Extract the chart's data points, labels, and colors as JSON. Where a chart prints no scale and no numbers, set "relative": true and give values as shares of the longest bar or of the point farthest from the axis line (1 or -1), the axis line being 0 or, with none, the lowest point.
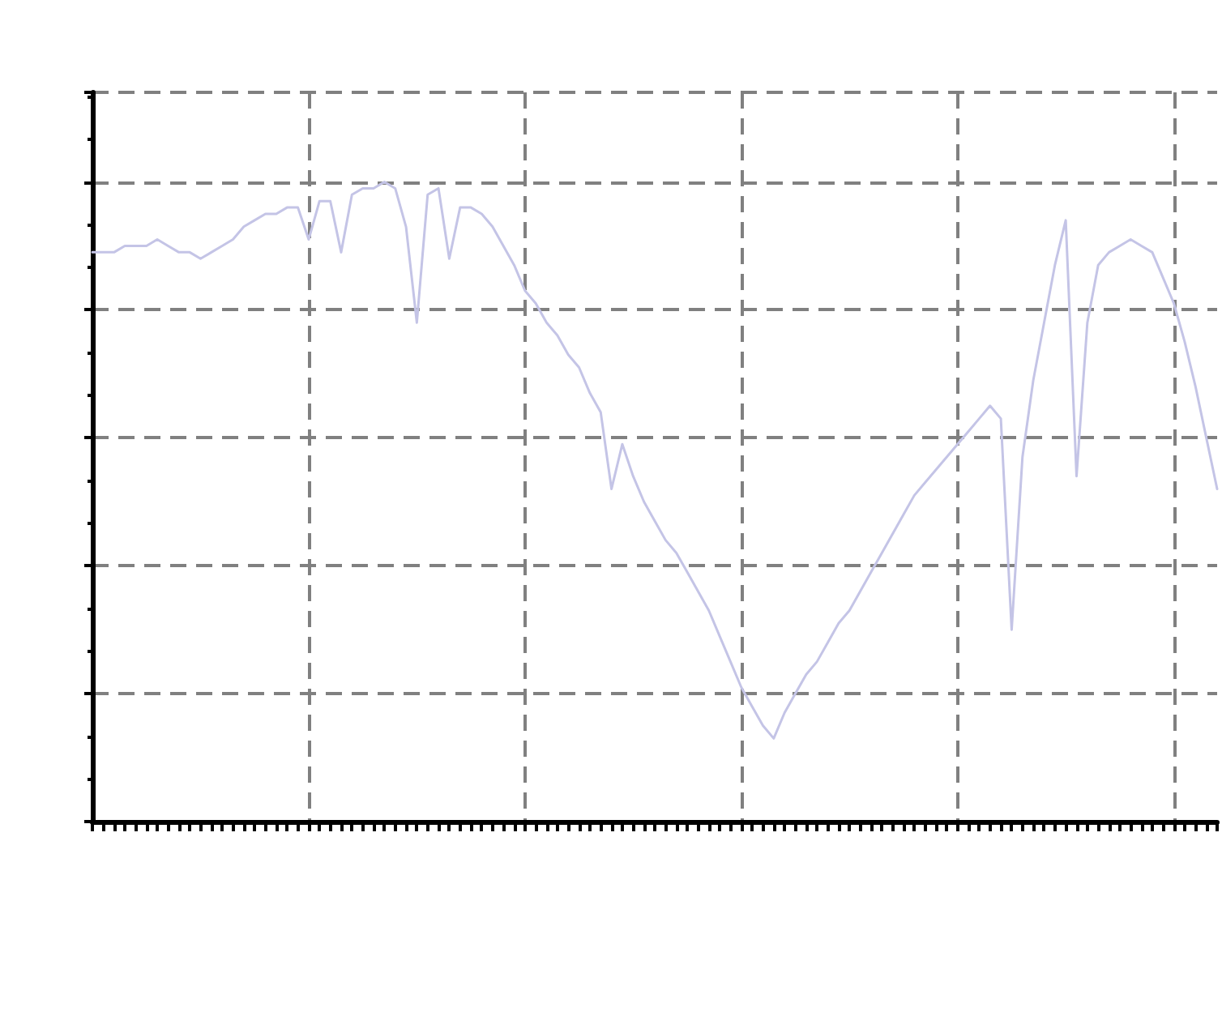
{
  "chart_data": {
    "type": "line",
    "relative": true,
    "grid": true,
    "line_style": "solid",
    "marker": "none",
    "categories": [
      null,
      null,
      null,
      null,
      null,
      null,
      null,
      null,
      null,
      null,
      null,
      null,
      null,
      null,
      null,
      null,
      null,
      null,
      null,
      null,
      null,
      null,
      null,
      null,
      null,
      null,
      null,
      null,
      null,
      null,
      null,
      null,
      null,
      null,
      null,
      null,
      null,
      null,
      null,
      null,
      null,
      null,
      null,
      null,
      null,
      null,
      null,
      null,
      null,
      null,
      null,
      null,
      null,
      null,
      null,
      null,
      null,
      null,
      null,
      null,
      null,
      null,
      null,
      null,
      null,
      null,
      null,
      null,
      null,
      null,
      null,
      null,
      null,
      null,
      null,
      null,
      null,
      null,
      null,
      null,
      null,
      null,
      null,
      null,
      null,
      null,
      null,
      null,
      null,
      null,
      null,
      null,
      null,
      null,
      null,
      null,
      null,
      null,
      null,
      null,
      null,
      null,
      null,
      null,
      null
    ],
    "series": [
      {
        "color": "#c4c4e6",
        "values": [
          0.89,
          0.89,
          0.89,
          0.9,
          0.9,
          0.9,
          0.91,
          0.9,
          0.89,
          0.89,
          0.88,
          0.89,
          0.9,
          0.91,
          0.93,
          0.94,
          0.95,
          0.95,
          0.96,
          0.96,
          0.91,
          0.97,
          0.97,
          0.89,
          0.98,
          0.99,
          0.99,
          1,
          0.99,
          0.93,
          0.78,
          0.98,
          0.99,
          0.88,
          0.96,
          0.96,
          0.95,
          0.93,
          0.9,
          0.87,
          0.83,
          0.81,
          0.78,
          0.76,
          0.73,
          0.71,
          0.67,
          0.64,
          0.52,
          0.59,
          0.54,
          0.5,
          0.47,
          0.44,
          0.42,
          0.39,
          0.36,
          0.33,
          0.29,
          0.25,
          0.21,
          0.18,
          0.15,
          0.13,
          0.17,
          0.2,
          0.23,
          0.25,
          0.28,
          0.31,
          0.33,
          0.36,
          0.39,
          0.42,
          0.45,
          0.48,
          0.51,
          0.53,
          0.55,
          0.57,
          0.59,
          0.61,
          0.63,
          0.65,
          0.63,
          0.3,
          0.57,
          0.69,
          0.78,
          0.87,
          0.94,
          0.54,
          0.78,
          0.87,
          0.89,
          0.9,
          0.91,
          0.9,
          0.89,
          0.85,
          0.81,
          0.75,
          0.68,
          0.6,
          0.52
        ]
      }
    ]
  }
}
